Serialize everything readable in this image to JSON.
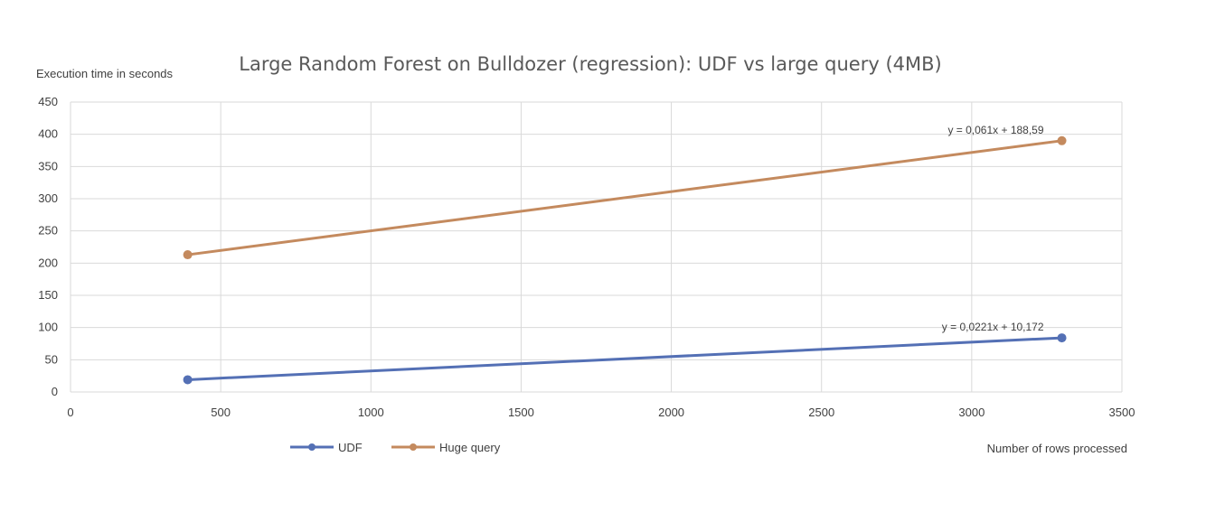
{
  "chart_data": {
    "type": "line",
    "title": "Large Random Forest on Bulldozer (regression): UDF vs large query (4MB)",
    "ylabel": "Execution time in seconds",
    "xlabel": "Number of rows processed",
    "xlim": [
      0,
      3500
    ],
    "ylim": [
      0,
      450
    ],
    "xticks": [
      0,
      500,
      1000,
      1500,
      2000,
      2500,
      3000,
      3500
    ],
    "yticks": [
      0,
      50,
      100,
      150,
      200,
      250,
      300,
      350,
      400,
      450
    ],
    "grid": true,
    "legend_position": "bottom-left",
    "series": [
      {
        "name": "UDF",
        "color": "#5470b5",
        "x": [
          390,
          3300
        ],
        "y": [
          19,
          84
        ],
        "trendline_label": "y = 0,0221x + 10,172"
      },
      {
        "name": "Huge query",
        "color": "#c48a5e",
        "x": [
          390,
          3300
        ],
        "y": [
          213,
          390
        ],
        "trendline_label": "y = 0,061x + 188,59"
      }
    ]
  }
}
